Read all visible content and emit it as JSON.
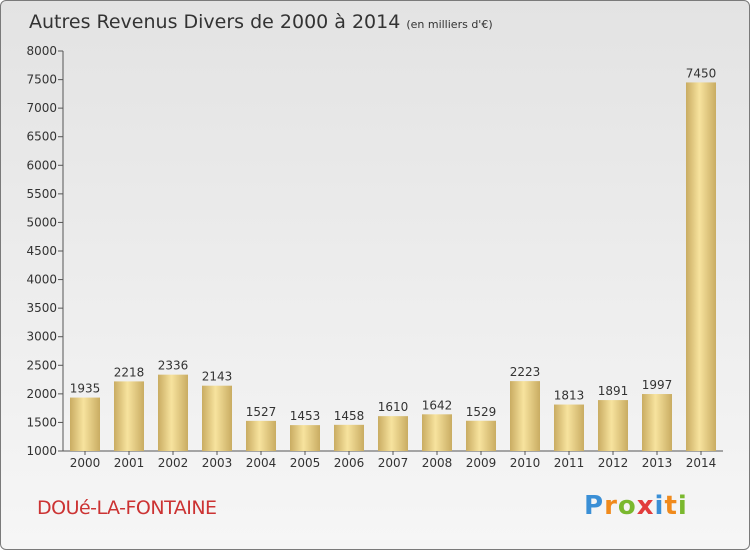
{
  "header": {
    "title": "Autres Revenus Divers de 2000 à 2014",
    "unit": "(en milliers d'€)"
  },
  "footer": {
    "location": "DOUé-LA-FONTAINE",
    "logo_letters": [
      "P",
      "r",
      "o",
      "x",
      "i",
      "t",
      "i"
    ],
    "logo_colors": [
      "#3a8fd6",
      "#f08a1c",
      "#7ab82e",
      "#e23c3c",
      "#3a8fd6",
      "#f08a1c",
      "#7ab82e"
    ]
  },
  "chart_data": {
    "type": "bar",
    "categories": [
      "2000",
      "2001",
      "2002",
      "2003",
      "2004",
      "2005",
      "2006",
      "2007",
      "2008",
      "2009",
      "2010",
      "2011",
      "2012",
      "2013",
      "2014"
    ],
    "values": [
      1935,
      2218,
      2336,
      2143,
      1527,
      1453,
      1458,
      1610,
      1642,
      1529,
      2223,
      1813,
      1891,
      1997,
      7450
    ],
    "ylim": [
      1000,
      8000
    ],
    "yticks": [
      1000,
      1500,
      2000,
      2500,
      3000,
      3500,
      4000,
      4500,
      5000,
      5500,
      6000,
      6500,
      7000,
      7500,
      8000
    ],
    "grid": false,
    "colors": {
      "bar_light": "#f7e39e",
      "bar_dark": "#c9ac62",
      "axis": "#555555"
    }
  }
}
